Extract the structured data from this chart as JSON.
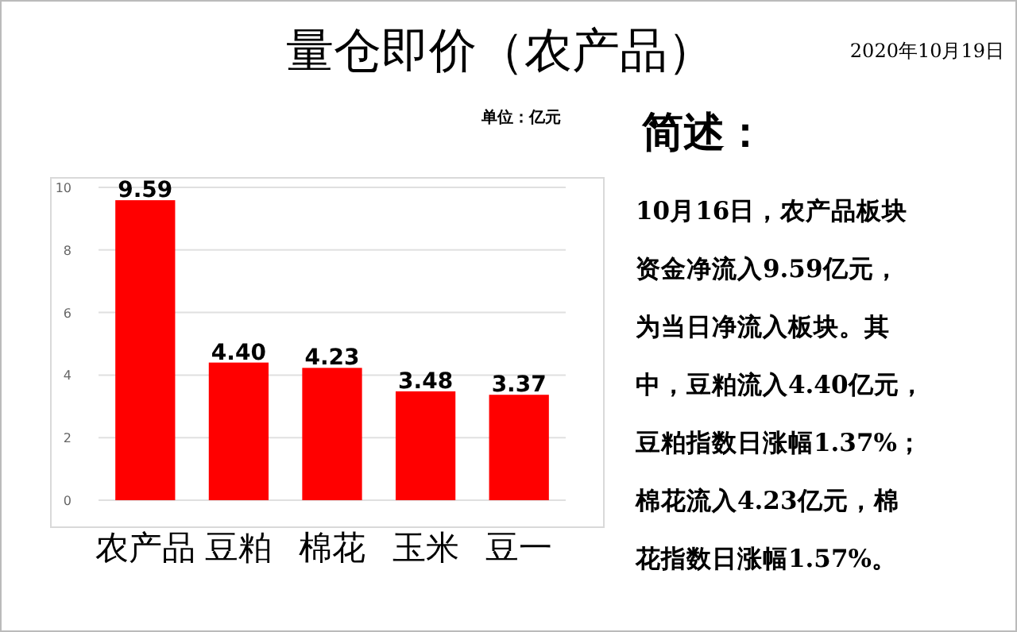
{
  "chart_data": {
    "type": "bar",
    "title": "量仓即价（农产品）",
    "categories": [
      "农产品",
      "豆粕",
      "棉花",
      "玉米",
      "豆一"
    ],
    "values": [
      9.59,
      4.4,
      4.23,
      3.48,
      3.37
    ],
    "value_labels": [
      "9.59",
      "4.40",
      "4.23",
      "3.48",
      "3.37"
    ],
    "color": "#ff0000",
    "ylim": [
      0,
      10
    ],
    "yticks": [
      0,
      2,
      4,
      6,
      8,
      10
    ],
    "grid": "y",
    "annotations": [
      "2020年10月19日",
      "单位：亿元",
      "简述：",
      "10月16日，农产品板块",
      "资金净流入9.59亿元，",
      "为当日净流入板块。其",
      "中，豆粕流入4.40亿元，",
      "豆粕指数日涨幅1.37%；",
      "棉花流入4.23亿元，棉",
      "花指数日涨幅1.57%。"
    ]
  }
}
